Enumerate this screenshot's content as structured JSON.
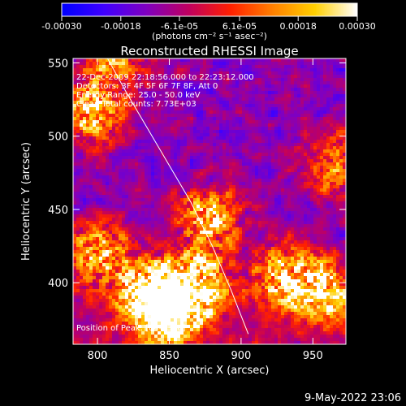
{
  "chart_data": {
    "type": "heatmap",
    "title": "Reconstructed RHESSI Image",
    "xlabel": "Heliocentric X (arcsec)",
    "ylabel": "Heliocentric Y (arcsec)",
    "xlim": [
      783,
      973
    ],
    "ylim": [
      358,
      553
    ],
    "x_ticks": [
      800,
      850,
      900,
      950
    ],
    "y_ticks": [
      400,
      450,
      500,
      550
    ],
    "colorbar": {
      "range": [
        -0.0003,
        0.0003
      ],
      "tick_values": [
        -0.0003,
        -0.00018,
        -6.1e-05,
        6.1e-05,
        0.00018,
        0.0003
      ],
      "tick_labels": [
        "-0.00030",
        "-0.00018",
        "-6.1e-05",
        "6.1e-05",
        "0.00018",
        "0.00030"
      ],
      "unit_label": "(photons cm⁻² s⁻¹ asec⁻²)",
      "colormap": [
        "#0000ff",
        "#4000ff",
        "#8000c0",
        "#c00060",
        "#ff2000",
        "#ff8000",
        "#ffd000",
        "#ffffff"
      ]
    },
    "annotations": [
      "22-Dec-2009 22:18:56.000 to 22:23:12.000",
      "Detectors: 3F 4F 5F 6F 7F 8F, Att 0",
      "Energy Range: 25.0 - 50.0 keV",
      "Clean     Total counts: 7.73E+03",
      "Position of Peak: [844,366]"
    ],
    "limb_curve": [
      [
        807,
        553
      ],
      [
        820,
        530
      ],
      [
        835,
        505
      ],
      [
        850,
        480
      ],
      [
        865,
        455
      ],
      [
        880,
        425
      ],
      [
        893,
        395
      ],
      [
        905,
        365
      ]
    ],
    "bright_regions": [
      {
        "x": 850,
        "y": 380,
        "level": 1.0
      },
      {
        "x": 835,
        "y": 395,
        "level": 0.85
      },
      {
        "x": 870,
        "y": 400,
        "level": 0.8
      },
      {
        "x": 878,
        "y": 445,
        "level": 0.75
      },
      {
        "x": 795,
        "y": 515,
        "level": 0.75
      },
      {
        "x": 800,
        "y": 420,
        "level": 0.7
      },
      {
        "x": 930,
        "y": 405,
        "level": 0.75
      },
      {
        "x": 960,
        "y": 395,
        "level": 0.7
      },
      {
        "x": 965,
        "y": 480,
        "level": 0.55
      },
      {
        "x": 812,
        "y": 550,
        "level": 0.55
      }
    ],
    "date_stamp": "9-May-2022 23:06"
  }
}
